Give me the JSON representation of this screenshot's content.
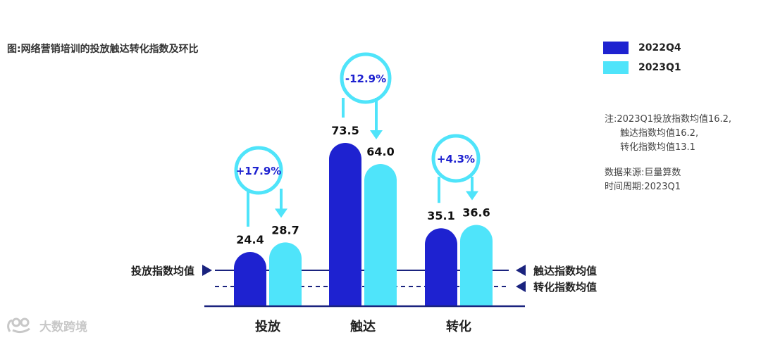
{
  "title": "图:网络营销培训的投放触达转化指数及环比",
  "legend": [
    {
      "label": "2022Q4",
      "color": "#1E22D0"
    },
    {
      "label": "2023Q1",
      "color": "#4FE4FA"
    }
  ],
  "note": {
    "line1": "注:2023Q1投放指数均值16.2,",
    "line2": "触达指数均值16.2,",
    "line3": "转化指数均值13.1"
  },
  "source": {
    "line1": "数据来源:巨量算数",
    "line2": "时间周期:2023Q1"
  },
  "watermark": "大数跨境",
  "chart_data": {
    "type": "bar",
    "title": "图:网络营销培训的投放触达转化指数及环比",
    "categories": [
      "投放",
      "触达",
      "转化"
    ],
    "series": [
      {
        "name": "2022Q4",
        "values": [
          24.4,
          73.5,
          35.1
        ],
        "labels": [
          "24.4",
          "73.5",
          "35.1"
        ],
        "color": "#1E22D0"
      },
      {
        "name": "2023Q1",
        "values": [
          28.7,
          64.0,
          36.6
        ],
        "labels": [
          "28.7",
          "64.0",
          "36.6"
        ],
        "color": "#4FE4FA"
      }
    ],
    "changes": [
      "+17.9%",
      "-12.9%",
      "+4.3%"
    ],
    "reference_lines": [
      {
        "label": "投放指数均值",
        "value": 16.2,
        "style": "solid",
        "side": "left"
      },
      {
        "label": "触达指数均值",
        "value": 16.2,
        "style": "solid",
        "side": "right"
      },
      {
        "label": "转化指数均值",
        "value": 13.1,
        "style": "dashed",
        "side": "right"
      }
    ],
    "ylim": [
      0,
      80
    ],
    "grid": false,
    "legend_position": "top-right"
  }
}
